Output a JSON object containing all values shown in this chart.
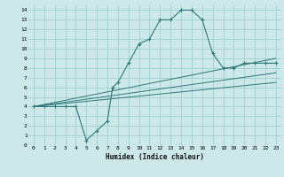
{
  "xlabel": "Humidex (Indice chaleur)",
  "bg_color": "#cce8e8",
  "grid_color": "#9ecece",
  "line_color": "#2d7878",
  "xlim": [
    -0.5,
    23.5
  ],
  "ylim": [
    0,
    14.5
  ],
  "xticks": [
    0,
    1,
    2,
    3,
    4,
    5,
    6,
    7,
    8,
    9,
    10,
    11,
    12,
    13,
    14,
    15,
    16,
    17,
    18,
    19,
    20,
    21,
    22,
    23
  ],
  "yticks": [
    0,
    1,
    2,
    3,
    4,
    5,
    6,
    7,
    8,
    9,
    10,
    11,
    12,
    13,
    14
  ],
  "curve_x": [
    0,
    1,
    2,
    3,
    4,
    5,
    6,
    7,
    7.5,
    8,
    9,
    10,
    11,
    12,
    13,
    14,
    15,
    16,
    17,
    18,
    19,
    20,
    21,
    22,
    23
  ],
  "curve_y": [
    4,
    4,
    4,
    4,
    4,
    0.5,
    1.5,
    2.5,
    6,
    6.5,
    8.5,
    10.5,
    11,
    13,
    13,
    14,
    14,
    13,
    9.5,
    8,
    8,
    8.5,
    8.5,
    8.5,
    8.5
  ],
  "straight_lines": [
    {
      "x": [
        0,
        23
      ],
      "y": [
        4,
        9.0
      ]
    },
    {
      "x": [
        0,
        23
      ],
      "y": [
        4,
        7.5
      ]
    },
    {
      "x": [
        0,
        23
      ],
      "y": [
        4,
        6.5
      ]
    }
  ]
}
